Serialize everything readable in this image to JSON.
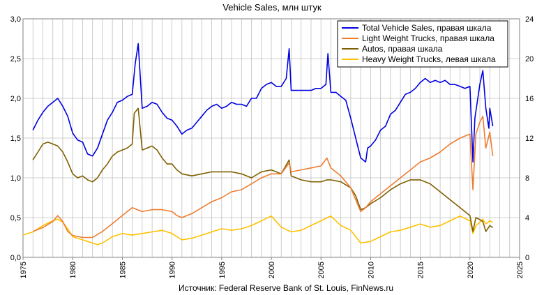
{
  "chart_data": {
    "type": "line",
    "title": "Vehicle  Sales,  млн  штук",
    "source": "Источник: Federal Reserve Bank of St. Louis, FinNews.ru",
    "x_ticks": [
      "1975",
      "1980",
      "1985",
      "1990",
      "1995",
      "2000",
      "2005",
      "2010",
      "2015",
      "2020",
      "2025"
    ],
    "y_left_ticks": [
      "0,0",
      "0,5",
      "1,0",
      "1,5",
      "2,0",
      "2,5",
      "3,0"
    ],
    "y_right_ticks": [
      "0",
      "4",
      "8",
      "12",
      "16",
      "20",
      "24"
    ],
    "xlim": [
      1975,
      2025
    ],
    "ylim_left": [
      0,
      3
    ],
    "ylim_right": [
      0,
      24
    ],
    "grid": true,
    "legend_position": "top-right",
    "series": [
      {
        "name": "Total Vehicle Sales, правая шкала",
        "axis": "right",
        "color": "#0000e0",
        "x": [
          1976,
          1976.5,
          1977,
          1977.5,
          1978,
          1978.5,
          1979,
          1979.5,
          1980,
          1980.5,
          1981,
          1981.5,
          1982,
          1982.5,
          1983,
          1983.5,
          1984,
          1984.5,
          1985,
          1985.5,
          1986,
          1986.3,
          1986.6,
          1987,
          1987.5,
          1988,
          1988.5,
          1989,
          1989.5,
          1990,
          1990.5,
          1991,
          1991.5,
          1992,
          1992.5,
          1993,
          1993.5,
          1994,
          1994.5,
          1995,
          1995.5,
          1996,
          1996.5,
          1997,
          1997.5,
          1998,
          1998.5,
          1999,
          1999.5,
          2000,
          2000.5,
          2001,
          2001.5,
          2001.8,
          2002,
          2002.5,
          2003,
          2003.5,
          2004,
          2004.5,
          2005,
          2005.5,
          2005.7,
          2006,
          2006.5,
          2007,
          2007.5,
          2008,
          2008.5,
          2009,
          2009.5,
          2009.7,
          2010,
          2010.5,
          2011,
          2011.5,
          2012,
          2012.5,
          2013,
          2013.5,
          2014,
          2014.5,
          2015,
          2015.5,
          2016,
          2016.5,
          2017,
          2017.5,
          2018,
          2018.5,
          2019,
          2019.5,
          2020,
          2020.3,
          2020.5,
          2021,
          2021.3,
          2021.6,
          2021.9,
          2022,
          2022.3
        ],
        "values": [
          12.8,
          13.8,
          14.6,
          15.2,
          15.6,
          16.0,
          15.2,
          14.2,
          12.5,
          11.8,
          11.6,
          10.4,
          10.2,
          11.0,
          12.4,
          13.8,
          14.6,
          15.6,
          15.8,
          16.2,
          16.4,
          19.5,
          21.5,
          15.0,
          15.2,
          15.6,
          15.4,
          14.6,
          14.0,
          13.8,
          13.2,
          12.4,
          12.8,
          13.0,
          13.6,
          14.2,
          14.8,
          15.2,
          15.4,
          15.0,
          15.2,
          15.6,
          15.4,
          15.4,
          15.2,
          16.0,
          16.0,
          17.0,
          17.4,
          17.6,
          17.2,
          17.2,
          18.0,
          21.0,
          16.8,
          16.8,
          16.8,
          16.8,
          16.8,
          17.0,
          17.0,
          17.4,
          20.5,
          16.6,
          16.6,
          16.2,
          15.8,
          14.0,
          12.0,
          10.0,
          9.6,
          11.0,
          11.2,
          11.8,
          12.8,
          13.2,
          14.4,
          14.8,
          15.6,
          16.4,
          16.6,
          17.0,
          17.6,
          18.0,
          17.6,
          17.8,
          17.6,
          17.8,
          17.4,
          17.4,
          17.2,
          17.0,
          17.2,
          9.6,
          14.0,
          17.4,
          18.8,
          15.0,
          13.0,
          15.0,
          13.2
        ]
      },
      {
        "name": "Light Weight Trucks, правая шкала",
        "axis": "right",
        "color": "#ed7d31",
        "x": [
          1976,
          1977,
          1978,
          1978.5,
          1979,
          1979.5,
          1980,
          1981,
          1982,
          1983,
          1984,
          1985,
          1985.5,
          1986,
          1986.5,
          1987,
          1988,
          1989,
          1990,
          1990.5,
          1991,
          1992,
          1993,
          1994,
          1995,
          1996,
          1997,
          1998,
          1999,
          2000,
          2001,
          2001.8,
          2002,
          2003,
          2004,
          2005,
          2005.6,
          2006,
          2007,
          2008,
          2008.5,
          2009,
          2009.5,
          2010,
          2011,
          2012,
          2013,
          2014,
          2015,
          2016,
          2017,
          2018,
          2019,
          2020,
          2020.3,
          2020.6,
          2021,
          2021.3,
          2021.6,
          2022,
          2022.3
        ],
        "values": [
          2.6,
          3.0,
          3.6,
          4.2,
          3.6,
          2.6,
          2.2,
          2.0,
          2.0,
          2.6,
          3.4,
          4.2,
          4.6,
          5.0,
          4.8,
          4.6,
          4.8,
          4.8,
          4.6,
          4.2,
          4.0,
          4.4,
          5.0,
          5.6,
          6.0,
          6.6,
          6.8,
          7.4,
          8.0,
          8.4,
          8.4,
          9.5,
          8.6,
          8.8,
          9.0,
          9.2,
          10.0,
          9.0,
          8.2,
          7.0,
          5.8,
          4.6,
          5.0,
          5.6,
          6.4,
          7.2,
          8.0,
          8.8,
          9.6,
          10.0,
          10.6,
          11.4,
          12.0,
          12.4,
          6.8,
          12.4,
          13.6,
          14.2,
          11.0,
          12.6,
          10.2
        ]
      },
      {
        "name": "Autos, правая шкала",
        "axis": "right",
        "color": "#7f5f00",
        "x": [
          1976,
          1976.5,
          1977,
          1977.5,
          1978,
          1978.5,
          1979,
          1979.5,
          1980,
          1980.5,
          1981,
          1981.5,
          1982,
          1982.5,
          1983,
          1983.5,
          1984,
          1984.5,
          1985,
          1985.5,
          1986,
          1986.2,
          1986.6,
          1987,
          1987.5,
          1988,
          1988.5,
          1989,
          1989.5,
          1990,
          1990.5,
          1991,
          1992,
          1993,
          1994,
          1995,
          1996,
          1997,
          1998,
          1999,
          2000,
          2001,
          2001.8,
          2002,
          2003,
          2004,
          2005,
          2005.6,
          2006,
          2007,
          2008,
          2008.5,
          2009,
          2009.5,
          2010,
          2011,
          2012,
          2013,
          2014,
          2015,
          2016,
          2017,
          2018,
          2019,
          2020,
          2020.3,
          2020.6,
          2021,
          2021.3,
          2021.6,
          2022,
          2022.3
        ],
        "values": [
          9.8,
          10.6,
          11.4,
          11.6,
          11.4,
          11.2,
          10.6,
          9.6,
          8.4,
          8.0,
          8.2,
          7.8,
          7.6,
          8.0,
          8.8,
          9.4,
          10.2,
          10.6,
          10.8,
          11.0,
          11.4,
          14.5,
          15.0,
          10.8,
          11.0,
          11.2,
          10.8,
          10.0,
          9.4,
          9.4,
          8.8,
          8.4,
          8.2,
          8.4,
          8.6,
          8.6,
          8.6,
          8.4,
          8.0,
          8.6,
          8.8,
          8.4,
          9.8,
          8.2,
          7.8,
          7.6,
          7.6,
          7.8,
          7.8,
          7.6,
          7.0,
          6.2,
          4.8,
          5.0,
          5.4,
          6.0,
          6.8,
          7.4,
          7.8,
          7.8,
          7.4,
          6.6,
          5.8,
          5.0,
          4.2,
          2.6,
          4.0,
          3.8,
          3.6,
          2.6,
          3.2,
          3.0
        ]
      },
      {
        "name": "Heavy  Weight Trucks, левая шкала",
        "axis": "left",
        "color": "#ffc000",
        "x": [
          1975,
          1976,
          1977,
          1978,
          1978.5,
          1979,
          1979.5,
          1980,
          1981,
          1982,
          1982.5,
          1983,
          1984,
          1985,
          1986,
          1987,
          1988,
          1989,
          1990,
          1991,
          1992,
          1993,
          1994,
          1995,
          1996,
          1997,
          1998,
          1999,
          2000,
          2001,
          2002,
          2003,
          2004,
          2005,
          2006,
          2007,
          2008,
          2009,
          2010,
          2011,
          2012,
          2013,
          2014,
          2015,
          2016,
          2017,
          2018,
          2019,
          2020,
          2020.3,
          2020.6,
          2021,
          2021.3,
          2021.6,
          2022,
          2022.3
        ],
        "values": [
          0.28,
          0.32,
          0.4,
          0.46,
          0.48,
          0.44,
          0.36,
          0.26,
          0.22,
          0.18,
          0.16,
          0.18,
          0.26,
          0.3,
          0.28,
          0.3,
          0.32,
          0.34,
          0.3,
          0.22,
          0.24,
          0.28,
          0.32,
          0.36,
          0.34,
          0.36,
          0.4,
          0.46,
          0.52,
          0.38,
          0.32,
          0.34,
          0.4,
          0.46,
          0.52,
          0.4,
          0.34,
          0.18,
          0.2,
          0.26,
          0.32,
          0.34,
          0.38,
          0.42,
          0.38,
          0.4,
          0.46,
          0.52,
          0.46,
          0.3,
          0.4,
          0.44,
          0.48,
          0.42,
          0.46,
          0.44
        ]
      }
    ]
  }
}
